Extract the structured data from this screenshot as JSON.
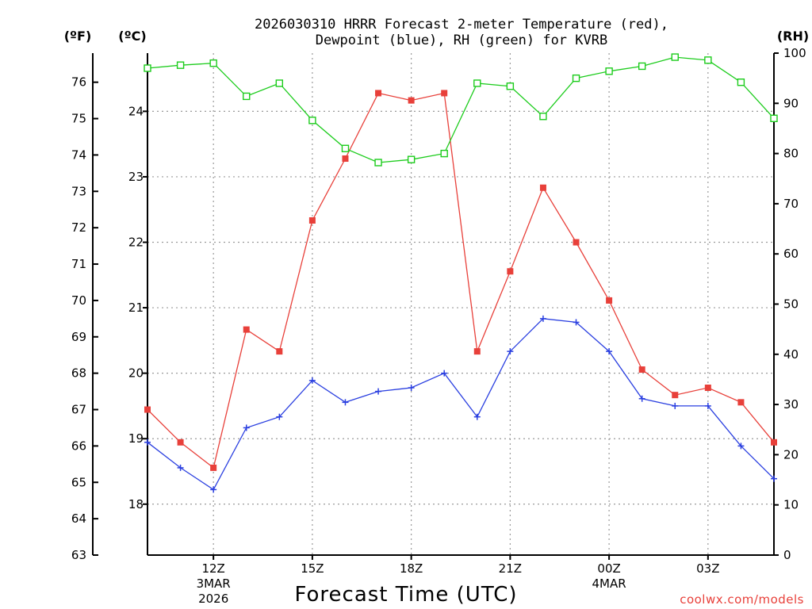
{
  "title_line1": "2026030310 HRRR Forecast 2-meter Temperature (red),",
  "title_line2": "Dewpoint (blue), RH (green) for KVRB",
  "unit_f": "(ºF)",
  "unit_c": "(ºC)",
  "unit_rh": "(RH)",
  "xlabel": "Forecast Time (UTC)",
  "credit": "coolwx.com/models",
  "colors": {
    "temperature": "#e8403a",
    "dewpoint": "#2a3fe0",
    "rh": "#1ccc1c",
    "grid": "#9a9a9a"
  },
  "chart_data": {
    "type": "line",
    "x_hours": [
      8,
      9,
      10,
      11,
      12,
      13,
      14,
      15,
      16,
      17,
      18,
      19,
      20,
      21,
      22,
      23,
      24,
      25,
      26,
      27
    ],
    "xlim": [
      8,
      27
    ],
    "x_ticks": [
      {
        "hour": 10,
        "label": "12Z",
        "date": "3MAR",
        "year": "2026"
      },
      {
        "hour": 13,
        "label": "15Z",
        "date": "",
        "year": ""
      },
      {
        "hour": 16,
        "label": "18Z",
        "date": "",
        "year": ""
      },
      {
        "hour": 19,
        "label": "21Z",
        "date": "",
        "year": ""
      },
      {
        "hour": 22,
        "label": "00Z",
        "date": "4MAR",
        "year": ""
      },
      {
        "hour": 25,
        "label": "03Z",
        "date": "",
        "year": ""
      }
    ],
    "y_left_f": {
      "label": "(ºF)",
      "range": [
        63,
        76.8
      ],
      "ticks": [
        63,
        64,
        65,
        66,
        67,
        68,
        69,
        70,
        71,
        72,
        73,
        74,
        75,
        76
      ]
    },
    "y_left_c": {
      "label": "(ºC)",
      "ticks": [
        18,
        19,
        20,
        21,
        22,
        23,
        24
      ]
    },
    "y_right_rh": {
      "label": "(RH)",
      "range": [
        0,
        100
      ],
      "ticks": [
        0,
        10,
        20,
        30,
        40,
        50,
        60,
        70,
        80,
        90,
        100
      ]
    },
    "series": [
      {
        "name": "Temperature",
        "unit": "F",
        "axis": "f",
        "marker": "filled-square",
        "values": [
          67.0,
          66.1,
          65.4,
          69.2,
          68.6,
          72.2,
          73.9,
          75.7,
          75.5,
          75.7,
          68.6,
          70.8,
          73.1,
          71.6,
          70.0,
          68.1,
          67.4,
          67.6,
          67.2,
          66.1
        ]
      },
      {
        "name": "Dewpoint",
        "unit": "F",
        "axis": "f",
        "marker": "plus",
        "values": [
          66.1,
          65.4,
          64.8,
          66.5,
          66.8,
          67.8,
          67.2,
          67.5,
          67.6,
          68.0,
          66.8,
          68.6,
          69.5,
          69.4,
          68.6,
          67.3,
          67.1,
          67.1,
          66.0,
          65.1
        ]
      },
      {
        "name": "RH",
        "unit": "%",
        "axis": "rh",
        "marker": "open-square",
        "values": [
          97,
          97.6,
          98,
          91.4,
          94,
          86.6,
          81,
          78.2,
          78.8,
          80,
          94,
          93.4,
          87.4,
          95,
          96.4,
          97.4,
          99.2,
          98.6,
          94.2,
          87
        ]
      }
    ]
  }
}
